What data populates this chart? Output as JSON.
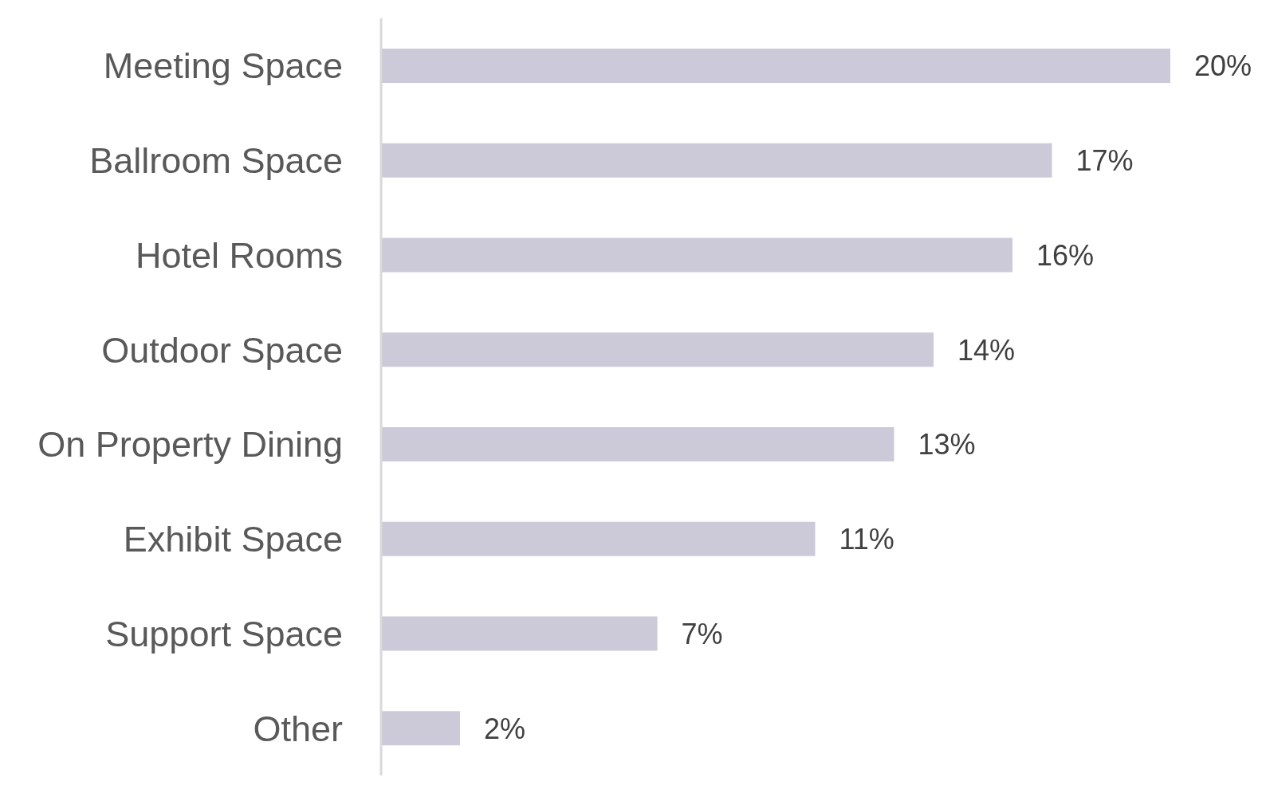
{
  "chart_data": {
    "type": "bar",
    "orientation": "horizontal",
    "categories": [
      "Meeting Space",
      "Ballroom Space",
      "Hotel Rooms",
      "Outdoor Space",
      "On Property Dining",
      "Exhibit Space",
      "Support Space",
      "Other"
    ],
    "values": [
      20,
      17,
      16,
      14,
      13,
      11,
      7,
      2
    ],
    "value_labels": [
      "20%",
      "17%",
      "16%",
      "14%",
      "13%",
      "11%",
      "7%",
      "2%"
    ],
    "color": "#cccad8"
  }
}
